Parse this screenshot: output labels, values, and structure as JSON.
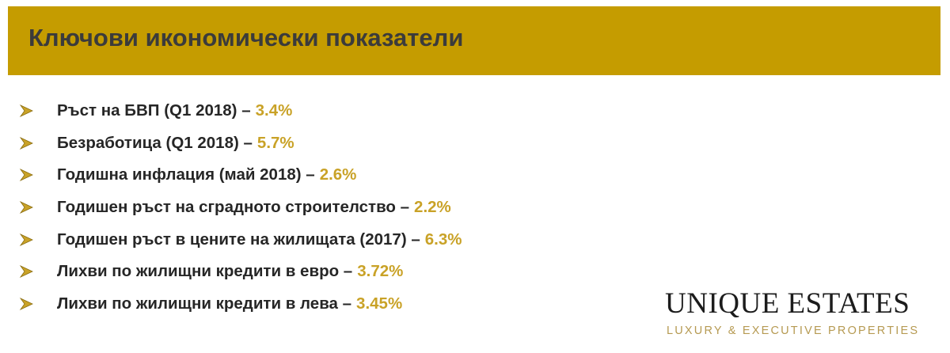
{
  "header": {
    "title": "Ключови икономически показатели"
  },
  "items": [
    {
      "label": "Ръст на БВП (Q1 2018) –",
      "value": "3.4%"
    },
    {
      "label": "Безработица (Q1 2018) –",
      "value": "5.7%"
    },
    {
      "label": "Годишна инфлация (май 2018) –",
      "value": "2.6%"
    },
    {
      "label": "Годишен ръст на сградното строителство –",
      "value": "2.2%"
    },
    {
      "label": "Годишен ръст в цените на жилищата (2017) –",
      "value": "6.3%"
    },
    {
      "label": "Лихви по жилищни кредити в евро –",
      "value": "3.72%"
    },
    {
      "label": "Лихви по жилищни кредити в лева –",
      "value": "3.45%"
    }
  ],
  "logo": {
    "name": "UNIQUE ESTATES",
    "tagline": "LUXURY & EXECUTIVE PROPERTIES"
  }
}
